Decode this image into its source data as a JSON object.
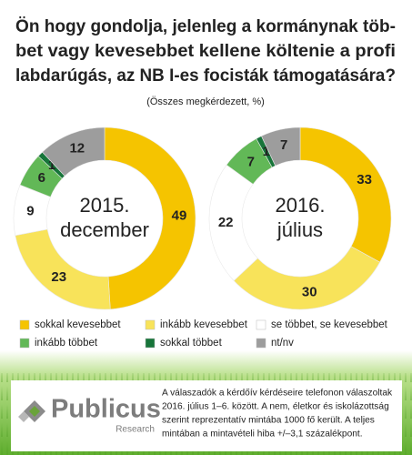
{
  "chart_data": {
    "type": "donut",
    "title_lines": [
      "Ön hogy gondolja, jelenleg a kormánynak töb-",
      "bet vagy kevesebbet kellene költenie a profi",
      "labdarúgás, az NB I-es focisták támogatására?"
    ],
    "subtitle": "(Összes megkérdezett, %)",
    "categories": [
      "sokkal kevesebbet",
      "inkább kevesebbet",
      "se többet, se kevesebbet",
      "inkább többet",
      "sokkal többet",
      "nt/nv"
    ],
    "colors": [
      "#f5c400",
      "#f8e35a",
      "#ffffff",
      "#62b857",
      "#17753a",
      "#9d9d9d"
    ],
    "series": [
      {
        "label_lines": [
          "2015.",
          "december"
        ],
        "values": [
          49,
          23,
          9,
          6,
          1,
          12
        ]
      },
      {
        "label_lines": [
          "2016.",
          "július"
        ],
        "values": [
          33,
          30,
          22,
          7,
          1,
          7
        ]
      }
    ]
  },
  "footer": {
    "logo": "Publicus",
    "logo_sub": "Research",
    "note_lines": [
      "A válaszadók a kérdőív kérdéseire telefonon válaszoltak",
      "2016. július 1–6. között. A nem, életkor és iskolázottság",
      "szerint reprezentatív mintába 1000 fő került. A teljes",
      "mintában a mintavételi hiba +/–3,1 százalékpont."
    ]
  }
}
